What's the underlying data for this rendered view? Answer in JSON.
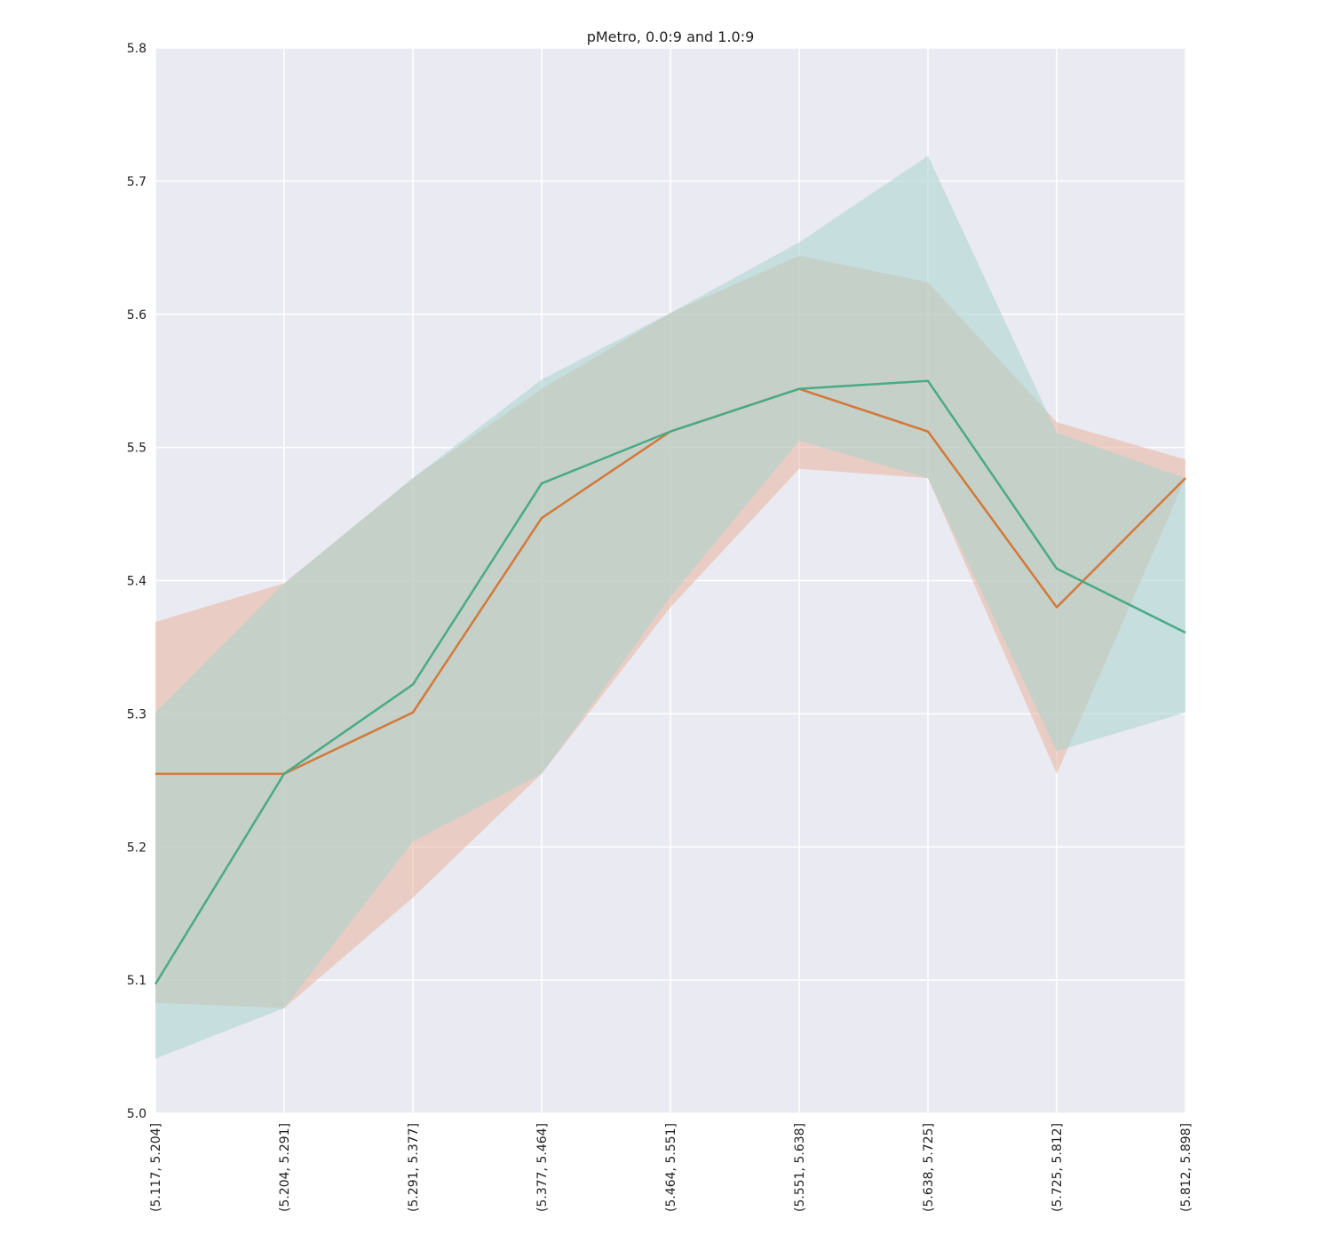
{
  "chart_data": {
    "type": "line",
    "title": "pMetro, 0.0:9 and 1.0:9",
    "xlabel": "",
    "ylabel": "",
    "categories": [
      "(5.117, 5.204]",
      "(5.204, 5.291]",
      "(5.291, 5.377]",
      "(5.377, 5.464]",
      "(5.464, 5.551]",
      "(5.551, 5.638]",
      "(5.638, 5.725]",
      "(5.725, 5.812]",
      "(5.812, 5.898]"
    ],
    "ylim": [
      5.0,
      5.8
    ],
    "yticks": [
      "5.0",
      "5.1",
      "5.2",
      "5.3",
      "5.4",
      "5.5",
      "5.6",
      "5.7",
      "5.8"
    ],
    "grid": true,
    "series": [
      {
        "color": "#d2793a",
        "band_color": "#e8b59f",
        "values": [
          5.255,
          5.255,
          5.301,
          5.447,
          5.512,
          5.544,
          5.512,
          5.38,
          5.477
        ],
        "lower": [
          5.083,
          5.079,
          5.162,
          5.255,
          5.38,
          5.484,
          5.477,
          5.255,
          5.477
        ],
        "upper": [
          5.369,
          5.398,
          5.477,
          5.544,
          5.601,
          5.644,
          5.624,
          5.519,
          5.491
        ]
      },
      {
        "color": "#4aaa86",
        "band_color": "#a8d4cc",
        "values": [
          5.097,
          5.255,
          5.322,
          5.473,
          5.512,
          5.544,
          5.55,
          5.409,
          5.361
        ],
        "lower": [
          5.041,
          5.079,
          5.204,
          5.255,
          5.388,
          5.505,
          5.477,
          5.272,
          5.301
        ],
        "upper": [
          5.301,
          5.398,
          5.477,
          5.551,
          5.601,
          5.654,
          5.719,
          5.511,
          5.477
        ]
      }
    ]
  }
}
